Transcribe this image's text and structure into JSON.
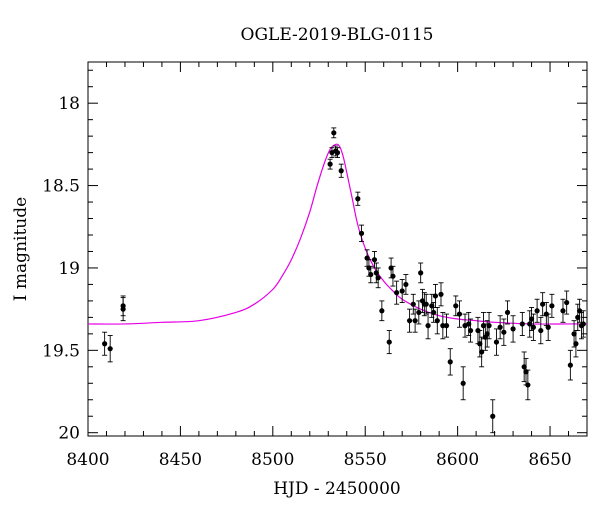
{
  "chart_data": {
    "type": "scatter",
    "title": "OGLE-2019-BLG-0115",
    "xlabel": "HJD - 2450000",
    "ylabel": "I magnitude",
    "xlim": [
      8400,
      8670
    ],
    "ylim": [
      17.75,
      20.02
    ],
    "y_inverted": true,
    "grid": false,
    "x_ticks": [
      "8400",
      "8450",
      "8500",
      "8550",
      "8600",
      "8650"
    ],
    "y_ticks": [
      "18",
      "18.5",
      "19",
      "19.5",
      "20"
    ],
    "colors": {
      "points": "#000000",
      "model": "#e600e6",
      "axes": "#000000"
    },
    "series": [
      {
        "kind": "points_with_errorbars",
        "x": [
          8409,
          8412,
          8419,
          8419,
          8531,
          8532,
          8533,
          8534,
          8535,
          8537,
          8546,
          8548,
          8551,
          8552,
          8553,
          8555,
          8556,
          8557,
          8559,
          8563,
          8564,
          8565,
          8567,
          8570,
          8572,
          8574,
          8576,
          8577,
          8579,
          8580,
          8581,
          8582,
          8583,
          8584,
          8586,
          8587,
          8588,
          8589,
          8591,
          8592,
          8594,
          8596,
          8599,
          8601,
          8603,
          8604,
          8606,
          8607,
          8611,
          8612,
          8613,
          8614,
          8615,
          8616,
          8617,
          8619,
          8621,
          8623,
          8625,
          8627,
          8630,
          8635,
          8636,
          8637,
          8638,
          8639,
          8640,
          8641,
          8643,
          8645,
          8646,
          8648,
          8649,
          8651,
          8657,
          8659,
          8661,
          8663,
          8664,
          8665,
          8666,
          8667,
          8668
        ],
        "y": [
          19.46,
          19.49,
          19.23,
          19.25,
          18.37,
          18.3,
          18.18,
          18.29,
          18.3,
          18.41,
          18.58,
          18.79,
          18.94,
          19.0,
          19.04,
          18.95,
          19.03,
          19.06,
          19.26,
          19.45,
          19.0,
          19.05,
          19.15,
          19.14,
          19.1,
          19.32,
          19.22,
          19.32,
          19.27,
          19.03,
          19.2,
          19.22,
          19.22,
          19.35,
          19.23,
          19.27,
          19.17,
          19.32,
          19.16,
          19.35,
          19.35,
          19.57,
          19.23,
          19.28,
          19.7,
          19.35,
          19.34,
          19.38,
          19.38,
          19.46,
          19.51,
          19.35,
          19.42,
          19.4,
          19.35,
          19.9,
          19.45,
          19.36,
          19.39,
          19.27,
          19.37,
          19.34,
          19.6,
          19.63,
          19.71,
          19.34,
          19.31,
          19.36,
          19.26,
          19.38,
          19.22,
          19.28,
          19.36,
          19.23,
          19.26,
          19.21,
          19.59,
          19.4,
          19.46,
          19.3,
          19.26,
          19.35,
          19.34
        ],
        "err": [
          0.07,
          0.08,
          0.06,
          0.07,
          0.03,
          0.03,
          0.03,
          0.03,
          0.03,
          0.04,
          0.04,
          0.05,
          0.05,
          0.05,
          0.05,
          0.05,
          0.06,
          0.06,
          0.06,
          0.07,
          0.06,
          0.06,
          0.07,
          0.07,
          0.06,
          0.07,
          0.06,
          0.07,
          0.07,
          0.06,
          0.07,
          0.07,
          0.06,
          0.08,
          0.07,
          0.06,
          0.07,
          0.08,
          0.07,
          0.08,
          0.07,
          0.08,
          0.06,
          0.08,
          0.1,
          0.07,
          0.07,
          0.07,
          0.08,
          0.08,
          0.09,
          0.08,
          0.08,
          0.08,
          0.08,
          0.1,
          0.08,
          0.07,
          0.08,
          0.07,
          0.08,
          0.07,
          0.09,
          0.08,
          0.09,
          0.08,
          0.07,
          0.08,
          0.07,
          0.08,
          0.07,
          0.07,
          0.08,
          0.07,
          0.07,
          0.07,
          0.09,
          0.08,
          0.08,
          0.08,
          0.07,
          0.08,
          0.08
        ]
      },
      {
        "kind": "model_curve",
        "x": [
          8400,
          8420,
          8440,
          8460,
          8480,
          8490,
          8500,
          8505,
          8510,
          8515,
          8520,
          8524,
          8528,
          8531,
          8534,
          8536,
          8538,
          8540,
          8543,
          8546,
          8550,
          8555,
          8560,
          8565,
          8570,
          8580,
          8590,
          8600,
          8610,
          8620,
          8640,
          8660,
          8670
        ],
        "y": [
          19.34,
          19.34,
          19.33,
          19.32,
          19.27,
          19.22,
          19.13,
          19.05,
          18.95,
          18.82,
          18.66,
          18.5,
          18.36,
          18.28,
          18.25,
          18.26,
          18.32,
          18.42,
          18.58,
          18.74,
          18.88,
          19.0,
          19.08,
          19.14,
          19.19,
          19.25,
          19.29,
          19.31,
          19.32,
          19.33,
          19.34,
          19.34,
          19.34
        ]
      }
    ]
  }
}
